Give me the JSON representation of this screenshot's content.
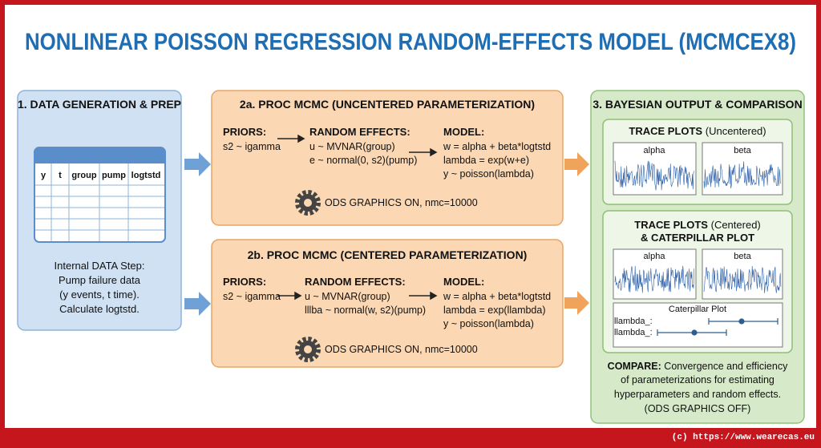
{
  "title": "NONLINEAR POISSON REGRESSION RANDOM-EFFECTS MODEL (MCMCEX8)",
  "data_panel": {
    "title": "1. DATA GENERATION & PREP",
    "table_headers": [
      "y",
      "t",
      "group",
      "pump",
      "logtstd"
    ],
    "description": [
      "Internal DATA Step:",
      "Pump failure data",
      "(y events, t time).",
      "Calculate logtstd."
    ]
  },
  "uncentered": {
    "title": "2a. PROC MCMC (UNCENTERED PARAMETERIZATION)",
    "priors": {
      "label": "PRIORS:",
      "lines": [
        "s2 ~ igamma"
      ]
    },
    "random_effects": {
      "label": "RANDOM EFFECTS:",
      "lines": [
        "u ~ MVNAR(group)",
        "e ~ normal(0, s2)(pump)"
      ]
    },
    "model": {
      "label": "MODEL:",
      "lines": [
        "w = alpha + beta*logtstd",
        "lambda = exp(w+e)",
        "y ~ poisson(lambda)"
      ]
    },
    "options": "ODS GRAPHICS ON, nmc=10000"
  },
  "centered": {
    "title": "2b. PROC MCMC (CENTERED PARAMETERIZATION)",
    "priors": {
      "label": "PRIORS:",
      "lines": [
        "s2 ~ igamma"
      ]
    },
    "random_effects": {
      "label": "RANDOM EFFECTS:",
      "lines": [
        "u ~ MVNAR(group)",
        "lllba ~ normal(w, s2)(pump)"
      ]
    },
    "model": {
      "label": "MODEL:",
      "lines": [
        "w = alpha + beta*logtstd",
        "lambda = exp(llambda)",
        "y ~ poisson(lambda)"
      ]
    },
    "options": "ODS GRAPHICS ON, nmc=10000"
  },
  "output": {
    "title": "3. BAYESIAN OUTPUT & COMPARISON",
    "uncentered_plots": {
      "title_bold": "TRACE PLOTS",
      "title_rest": "(Uncentered)",
      "panels": [
        "alpha",
        "beta"
      ]
    },
    "centered_plots": {
      "title_bold": "TRACE PLOTS",
      "title_rest": "(Centered)",
      "title_line2": "& CATERPILLAR PLOT",
      "panels": [
        "alpha",
        "beta"
      ],
      "caterpillar": {
        "title": "Caterpillar Plot",
        "labels": [
          "llambda_:",
          "llambda_:"
        ]
      }
    },
    "compare": {
      "label": "COMPARE:",
      "lines": [
        "Convergence and efficiency",
        "of parameterizations for estimating",
        "hyperparameters and random effects.",
        "(ODS GRAPHICS OFF)"
      ]
    }
  },
  "footer": "(c) https://www.wearecas.eu"
}
